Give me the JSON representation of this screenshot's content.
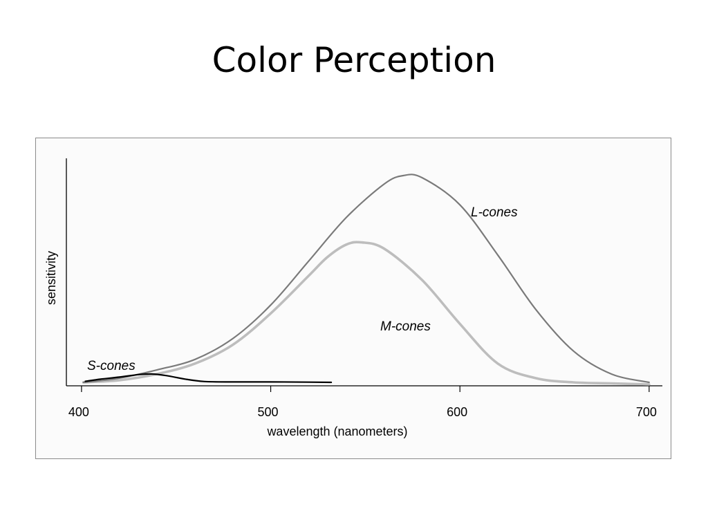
{
  "slide": {
    "title": "Color Perception"
  },
  "chart_data": {
    "type": "line",
    "xlabel": "wavelength (nanometers)",
    "ylabel": "sensitivity",
    "xlim": [
      392,
      707
    ],
    "ylim": [
      0,
      1
    ],
    "x_ticks": [
      400,
      500,
      600,
      700
    ],
    "grid": false,
    "axis_color": "#000000",
    "series": [
      {
        "name": "L-cones",
        "color": "#7a7a7a",
        "label_style": "italic",
        "x": [
          401,
          420,
          440,
          460,
          480,
          500,
          520,
          540,
          560,
          570,
          580,
          600,
          620,
          640,
          660,
          680,
          700
        ],
        "y": [
          0.01,
          0.03,
          0.07,
          0.12,
          0.22,
          0.38,
          0.59,
          0.8,
          0.96,
          1.0,
          0.99,
          0.86,
          0.62,
          0.36,
          0.16,
          0.05,
          0.01
        ]
      },
      {
        "name": "M-cones",
        "color": "#bdbdbd",
        "label_style": "italic",
        "x": [
          401,
          420,
          440,
          460,
          480,
          500,
          520,
          530,
          540,
          548,
          560,
          580,
          600,
          620,
          640,
          660,
          680,
          700
        ],
        "y": [
          0.01,
          0.02,
          0.05,
          0.1,
          0.19,
          0.34,
          0.52,
          0.61,
          0.67,
          0.68,
          0.65,
          0.5,
          0.29,
          0.1,
          0.03,
          0.01,
          0.005,
          0.0
        ]
      },
      {
        "name": "S-cones",
        "color": "#000000",
        "label_style": "italic",
        "x": [
          402,
          410,
          420,
          430,
          437,
          445,
          455,
          465,
          480,
          500,
          520,
          532
        ],
        "y": [
          0.015,
          0.025,
          0.035,
          0.047,
          0.05,
          0.042,
          0.025,
          0.014,
          0.012,
          0.012,
          0.011,
          0.01
        ]
      }
    ]
  }
}
